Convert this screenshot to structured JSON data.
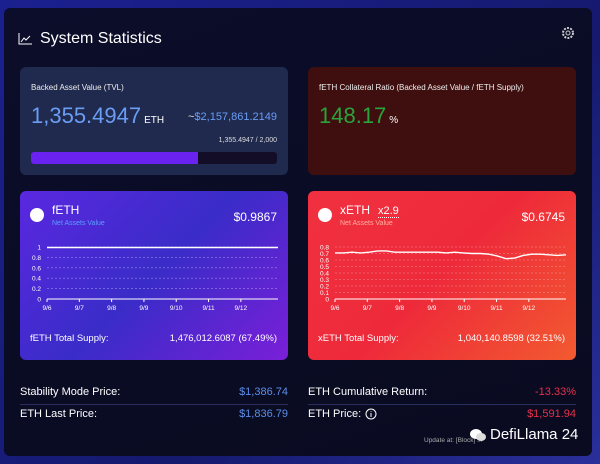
{
  "header": {
    "title": "System Statistics",
    "icon": "line-chart-icon",
    "settings_icon": "gear-icon"
  },
  "tvl": {
    "label": "Backed Asset Value (TVL)",
    "value": "1,355.4947",
    "unit": "ETH",
    "usd_prefix": "~",
    "usd": "$2,157,861.2149",
    "capacity": "1,355.4947 / 2,000",
    "progress_percent": 67.77,
    "bar_color": "#6a22f0"
  },
  "ratio": {
    "label": "fETH Collateral Ratio (Backed Asset Value / fETH Supply)",
    "value": "148.17",
    "unit": "%",
    "color": "#2aa43a"
  },
  "feth": {
    "name": "fETH",
    "subtitle": "Net Assets Value",
    "price": "$0.9867",
    "supply_label": "fETH Total Supply:",
    "supply": "1,476,012.6087 (67.49%)",
    "subtitle_color": "#5aa0ff"
  },
  "xeth": {
    "name": "xETH",
    "leverage": "x2.9",
    "subtitle": "Net Assets Value",
    "price": "$0.6745",
    "supply_label": "xETH Total Supply:",
    "supply": "1,040,140.8598 (32.51%)",
    "subtitle_color": "#ffb0a0"
  },
  "chart_data": [
    {
      "type": "line",
      "xlabels": [
        "9/6",
        "9/7",
        "9/8",
        "9/9",
        "9/10",
        "9/11",
        "9/12"
      ],
      "yticks": [
        "0",
        "0.2",
        "0.4",
        "0.6",
        "0.8",
        "1"
      ],
      "ylim": [
        0,
        1
      ],
      "grid": true,
      "values": [
        0.99,
        0.99,
        0.99,
        0.99,
        0.99,
        0.99,
        0.99,
        0.99,
        0.99,
        0.99,
        0.99,
        0.99,
        0.99,
        0.99,
        0.99
      ]
    },
    {
      "type": "line",
      "xlabels": [
        "9/6",
        "9/7",
        "9/8",
        "9/9",
        "9/10",
        "9/11",
        "9/12"
      ],
      "yticks": [
        "0",
        "0.1",
        "0.2",
        "0.3",
        "0.4",
        "0.5",
        "0.6",
        "0.7",
        "0.8"
      ],
      "ylim": [
        0,
        0.8
      ],
      "grid": true,
      "values": [
        0.71,
        0.71,
        0.72,
        0.71,
        0.72,
        0.74,
        0.74,
        0.72,
        0.72,
        0.72,
        0.72,
        0.72,
        0.72,
        0.71,
        0.72,
        0.71,
        0.7,
        0.7,
        0.69,
        0.66,
        0.62,
        0.63,
        0.67,
        0.69,
        0.69,
        0.68,
        0.67,
        0.68
      ]
    }
  ],
  "stats": {
    "stability_label": "Stability Mode Price:",
    "stability": "$1,386.74",
    "last_label": "ETH Last Price:",
    "last": "$1,836.79",
    "return_label": "ETH Cumulative Return:",
    "return": "-13.33%",
    "price_label": "ETH Price:",
    "price": "$1,591.94",
    "blue": "#5b8ee8",
    "red": "#e8304a"
  },
  "footer": {
    "update": "Update at: [Block] ...",
    "watermark": "DefiLlama 24"
  }
}
